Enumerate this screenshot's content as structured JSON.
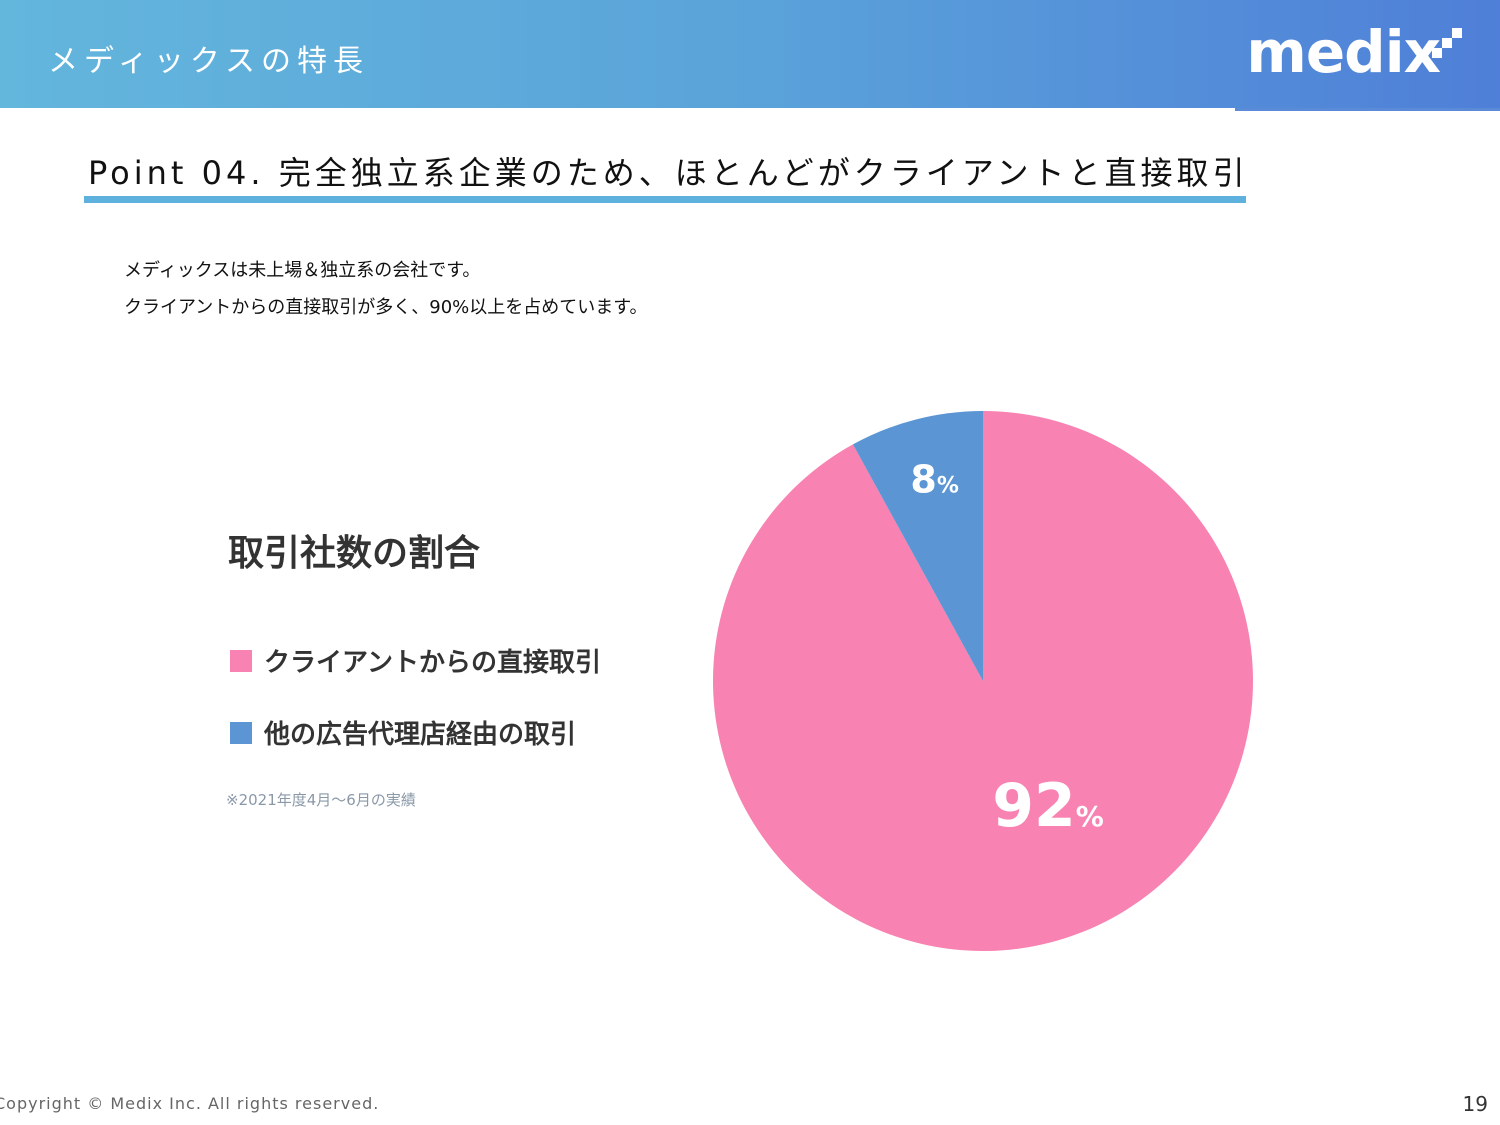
{
  "header": {
    "title": "メディックスの特長",
    "logo_text": "medix"
  },
  "point": {
    "title": "Point 04. 完全独立系企業のため、ほとんどがクライアントと直接取引"
  },
  "description": {
    "line1": "メディックスは未上場＆独立系の会社です。",
    "line2": "クライアントからの直接取引が多く、90%以上を占めています。"
  },
  "chart_data": {
    "type": "pie",
    "title": "取引社数の割合",
    "slices": [
      {
        "label": "クライアントからの直接取引",
        "value": 92,
        "display": "92",
        "color": "#f882b2"
      },
      {
        "label": "他の広告代理店経由の取引",
        "value": 8,
        "display": "8",
        "color": "#5b95d4"
      }
    ],
    "unit": "%",
    "note": "※2021年度4月～6月の実績"
  },
  "footer": {
    "copyright": "Copyright © Medix Inc. All rights reserved.",
    "page": "19"
  }
}
